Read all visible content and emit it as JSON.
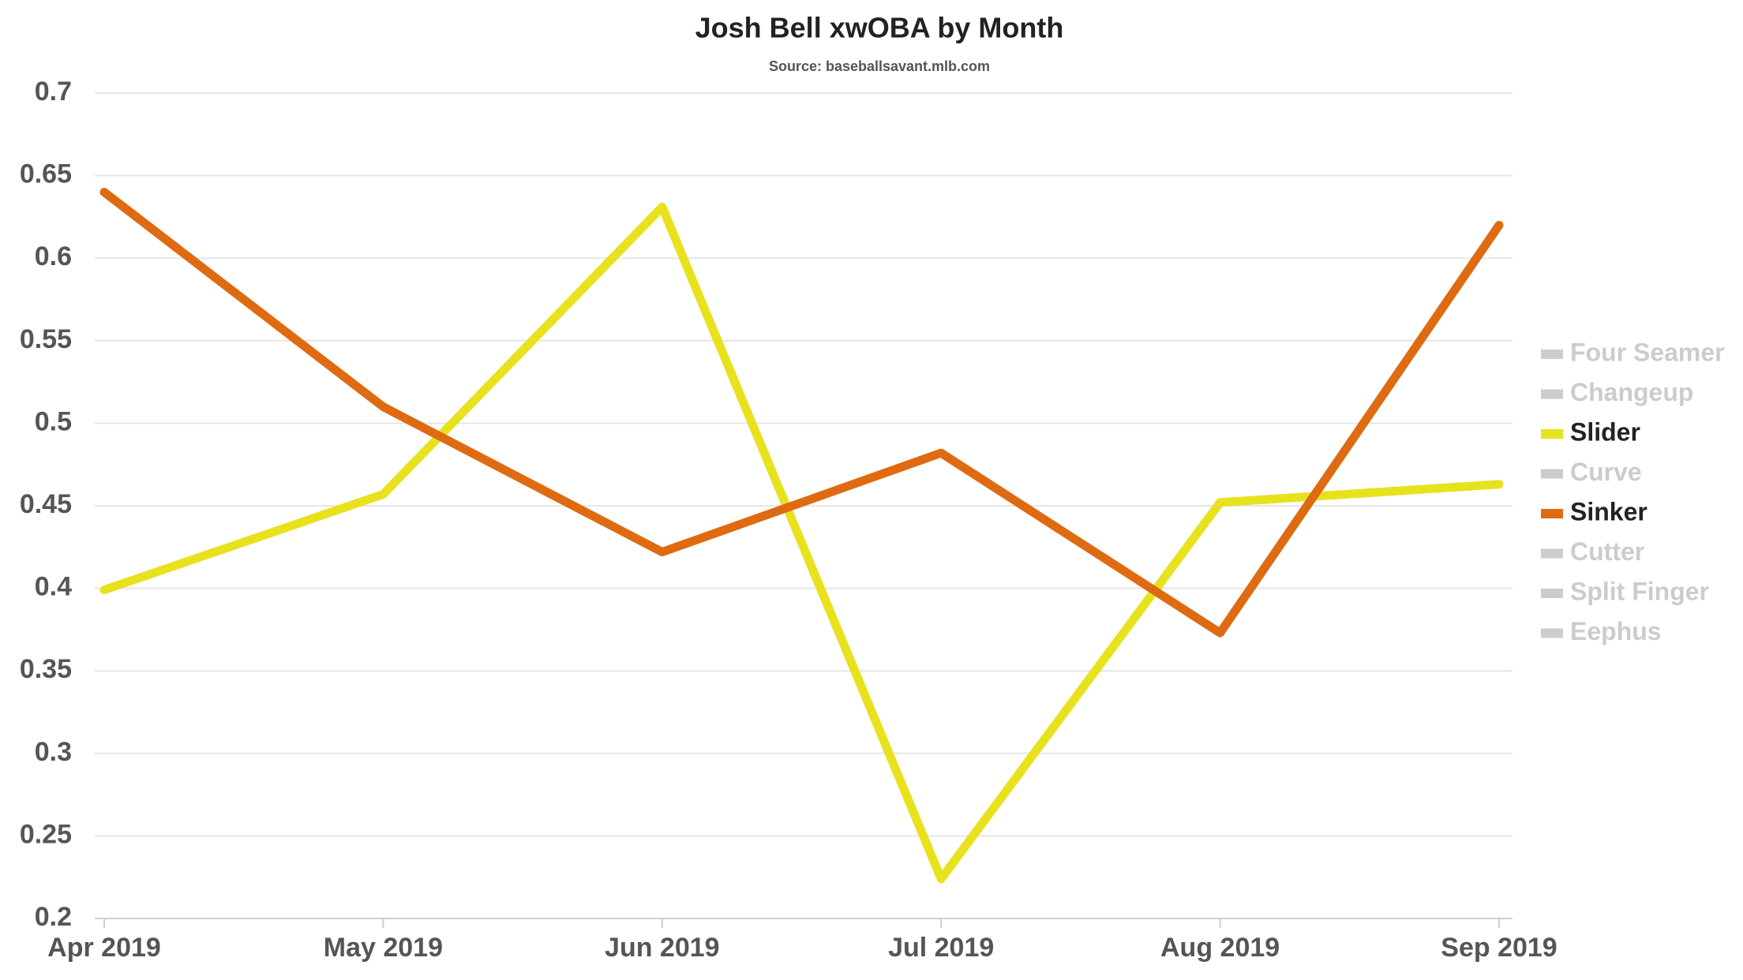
{
  "chart_data": {
    "type": "line",
    "title": "Josh Bell xwOBA by Month",
    "subtitle": "Source: baseballsavant.mlb.com",
    "categories": [
      "Apr 2019",
      "May 2019",
      "Jun 2019",
      "Jul 2019",
      "Aug 2019",
      "Sep 2019"
    ],
    "series": [
      {
        "name": "Four Seamer",
        "visible": false,
        "values": [
          null,
          null,
          null,
          null,
          null,
          null
        ]
      },
      {
        "name": "Changeup",
        "visible": false,
        "values": [
          null,
          null,
          null,
          null,
          null,
          null
        ]
      },
      {
        "name": "Slider",
        "visible": true,
        "color": "#e8e21e",
        "values": [
          0.399,
          0.457,
          0.631,
          0.224,
          0.452,
          0.463
        ]
      },
      {
        "name": "Curve",
        "visible": false,
        "values": [
          null,
          null,
          null,
          null,
          null,
          null
        ]
      },
      {
        "name": "Sinker",
        "visible": true,
        "color": "#de6b12",
        "values": [
          0.64,
          0.51,
          0.422,
          0.482,
          0.373,
          0.62
        ]
      },
      {
        "name": "Cutter",
        "visible": false,
        "values": [
          null,
          null,
          null,
          null,
          null,
          null
        ]
      },
      {
        "name": "Split Finger",
        "visible": false,
        "values": [
          null,
          null,
          null,
          null,
          null,
          null
        ]
      },
      {
        "name": "Eephus",
        "visible": false,
        "values": [
          null,
          null,
          null,
          null,
          null,
          null
        ]
      }
    ],
    "legend_hidden_color": "#cccccc",
    "ylim": [
      0.2,
      0.7
    ],
    "yticks": [
      0.2,
      0.25,
      0.3,
      0.35,
      0.4,
      0.45,
      0.5,
      0.55,
      0.6,
      0.65,
      0.7
    ],
    "grid": true,
    "legend": "right"
  }
}
